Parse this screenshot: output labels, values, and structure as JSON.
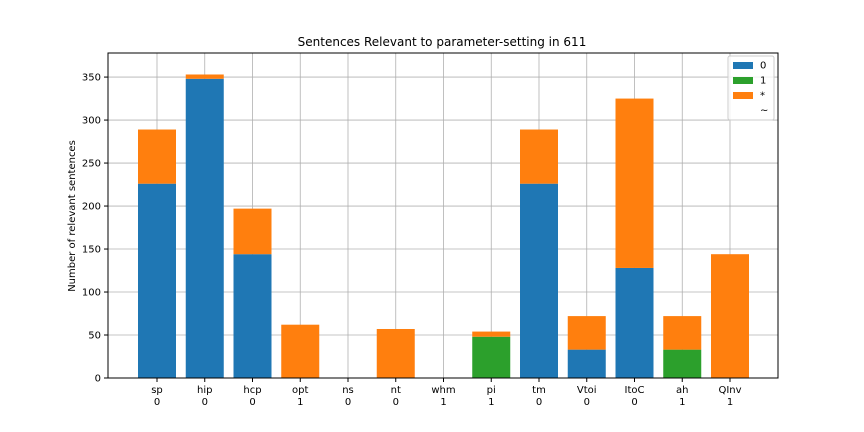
{
  "chart_data": {
    "type": "bar",
    "stacked": true,
    "title": "Sentences Relevant to parameter-setting in 611",
    "xlabel": "",
    "ylabel": "Number of relevant sentences",
    "ylim": [
      0,
      378
    ],
    "yticks": [
      0,
      50,
      100,
      150,
      200,
      250,
      300,
      350
    ],
    "grid": true,
    "legend_position": "top-right",
    "categories": [
      "sp",
      "hip",
      "hcp",
      "opt",
      "ns",
      "nt",
      "whm",
      "pi",
      "tm",
      "Vtoi",
      "ItoC",
      "ah",
      "QInv"
    ],
    "category_values": [
      "0",
      "0",
      "0",
      "1",
      "0",
      "0",
      "1",
      "1",
      "0",
      "0",
      "0",
      "1",
      "1"
    ],
    "series": [
      {
        "name": "0",
        "color": "#1f77b4",
        "values": [
          226,
          348,
          144,
          0,
          0,
          0,
          0,
          0,
          226,
          33,
          128,
          0,
          0
        ]
      },
      {
        "name": "1",
        "color": "#2ca02c",
        "values": [
          0,
          0,
          0,
          0,
          0,
          0,
          0,
          48,
          0,
          0,
          0,
          33,
          0
        ]
      },
      {
        "name": "*",
        "color": "#ff7f0e",
        "values": [
          63,
          5,
          53,
          62,
          0,
          57,
          0,
          6,
          63,
          39,
          197,
          39,
          144
        ]
      },
      {
        "name": "~",
        "color": "",
        "values": [
          0,
          0,
          0,
          0,
          0,
          0,
          0,
          0,
          0,
          0,
          0,
          0,
          0
        ]
      }
    ]
  }
}
